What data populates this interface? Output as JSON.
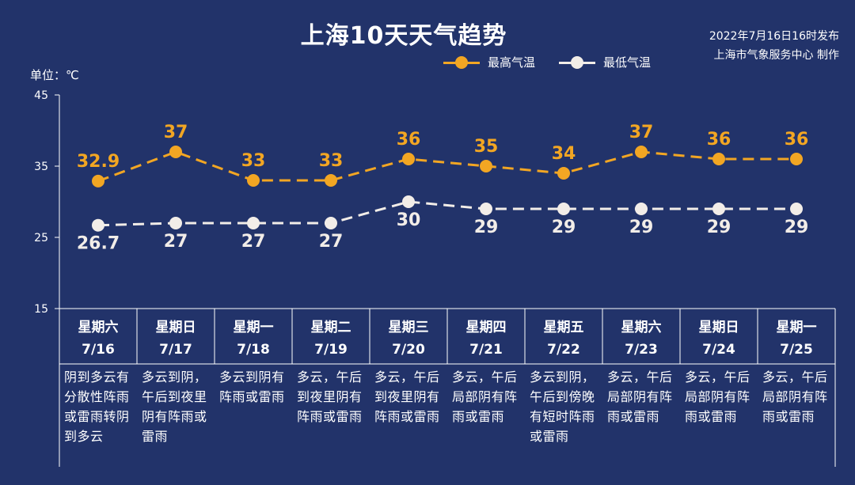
{
  "header": {
    "title": "上海10天天气趋势",
    "publish_line1": "2022年7月16日16时发布",
    "publish_line2": "上海市气象服务中心 制作"
  },
  "legend": {
    "high_label": "最高气温",
    "low_label": "最低气温"
  },
  "unit_label": "单位：℃",
  "colors": {
    "background": "#22336a",
    "high": "#f2a623",
    "low": "#f2ede8",
    "axis": "#ffffff"
  },
  "chart_data": {
    "type": "line",
    "categories": [
      "7/16",
      "7/17",
      "7/18",
      "7/19",
      "7/20",
      "7/21",
      "7/22",
      "7/23",
      "7/24",
      "7/25"
    ],
    "series": [
      {
        "name": "最高气温",
        "values": [
          32.9,
          37,
          33,
          33,
          36,
          35,
          34,
          37,
          36,
          36
        ]
      },
      {
        "name": "最低气温",
        "values": [
          26.7,
          27,
          27,
          27,
          30,
          29,
          29,
          29,
          29,
          29
        ]
      }
    ],
    "ylim": [
      15,
      45
    ],
    "yticks": [
      15,
      25,
      35,
      45
    ],
    "legend_position": "top-right",
    "grid": false
  },
  "days": [
    {
      "weekday": "星期六",
      "date": "7/16",
      "desc": "阴到多云有分散性阵雨或雷雨转阴到多云"
    },
    {
      "weekday": "星期日",
      "date": "7/17",
      "desc": "多云到阴，午后到夜里阴有阵雨或雷雨"
    },
    {
      "weekday": "星期一",
      "date": "7/18",
      "desc": "多云到阴有阵雨或雷雨"
    },
    {
      "weekday": "星期二",
      "date": "7/19",
      "desc": "多云，午后到夜里阴有阵雨或雷雨"
    },
    {
      "weekday": "星期三",
      "date": "7/20",
      "desc": "多云，午后到夜里阴有阵雨或雷雨"
    },
    {
      "weekday": "星期四",
      "date": "7/21",
      "desc": "多云，午后局部阴有阵雨或雷雨"
    },
    {
      "weekday": "星期五",
      "date": "7/22",
      "desc": "多云到阴，午后到傍晚有短时阵雨或雷雨"
    },
    {
      "weekday": "星期六",
      "date": "7/23",
      "desc": "多云，午后局部阴有阵雨或雷雨"
    },
    {
      "weekday": "星期日",
      "date": "7/24",
      "desc": "多云，午后局部阴有阵雨或雷雨"
    },
    {
      "weekday": "星期一",
      "date": "7/25",
      "desc": "多云，午后局部阴有阵雨或雷雨"
    }
  ]
}
